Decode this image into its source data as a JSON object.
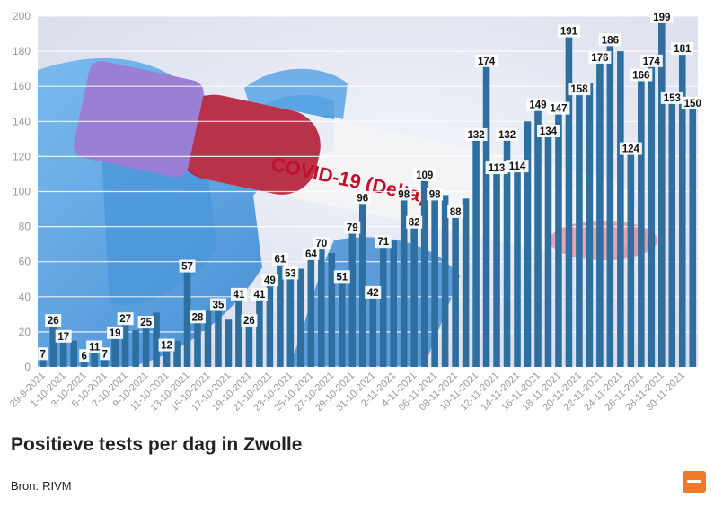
{
  "title": "Positieve tests per dag in Zwolle",
  "source": {
    "label": "Bron:",
    "value": "RIVM"
  },
  "photo": {
    "label": "COVID-19 (Delta)"
  },
  "colors": {
    "bar": "#2e6fa0",
    "label_bg": "#ffffff",
    "label_text": "#111111",
    "grid": "#ffffff",
    "axis_text": "#9a9a9a",
    "logo": "#f07a2a"
  },
  "logo_icon": "publisher-logo",
  "chart_data": {
    "type": "bar",
    "title": "",
    "xlabel": "",
    "ylabel": "",
    "ylim": [
      0,
      200
    ],
    "yticks": [
      0,
      20,
      40,
      60,
      80,
      100,
      120,
      140,
      160,
      180,
      200
    ],
    "grid": true,
    "dates": [
      "29-9-2021",
      "30-9-2021",
      "1-10-2021",
      "2-10-2021",
      "3-10-2021",
      "4-10-2021",
      "5-10-2021",
      "6-10-2021",
      "7-10-2021",
      "8-10-2021",
      "9-10-2021",
      "10-10-2021",
      "11-10-2021",
      "12-10-2021",
      "13-10-2021",
      "14-10-2021",
      "15-10-2021",
      "16-10-2021",
      "17-10-2021",
      "18-10-2021",
      "19-10-2021",
      "20-10-2021",
      "21-10-2021",
      "22-10-2021",
      "23-10-2021",
      "24-10-2021",
      "25-10-2021",
      "26-10-2021",
      "27-10-2021",
      "28-10-2021",
      "29-10-2021",
      "30-10-2021",
      "31-10-2021",
      "1-11-2021",
      "2-11-2021",
      "3-11-2021",
      "4-11-2021",
      "5-11-2021",
      "06-11-2021",
      "07-11-2021",
      "08-11-2021",
      "09-11-2021",
      "10-11-2021",
      "11-11-2021",
      "12-11-2021",
      "13-11-2021",
      "14-11-2021",
      "15-11-2021",
      "16-11-2021",
      "17-11-2021",
      "18-11-2021",
      "19-11-2021",
      "20-11-2021",
      "21-11-2021",
      "22-11-2021",
      "23-11-2021",
      "24-11-2021",
      "25-11-2021",
      "26-11-2021",
      "27-11-2021",
      "28-11-2021",
      "29-11-2021",
      "30-11-2021",
      "1-12-2021"
    ],
    "visible_tick_labels": [
      "29-9-2021",
      "1-10-2021",
      "3-10-2021",
      "5-10-2021",
      "7-10-2021",
      "9-10-2021",
      "11-10-2021",
      "13-10-2021",
      "15-10-2021",
      "17-10-2021",
      "19-10-2021",
      "21-10-2021",
      "23-10-2021",
      "25-10-2021",
      "27-10-2021",
      "29-10-2021",
      "31-10-2021",
      "2-11-2021",
      "4-11-2021",
      "06-11-2021",
      "08-11-2021",
      "10-11-2021",
      "12-11-2021",
      "14-11-2021",
      "16-11-2021",
      "18-11-2021",
      "20-11-2021",
      "22-11-2021",
      "24-11-2021",
      "26-11-2021",
      "28-11-2021",
      "30-11-2021"
    ],
    "values": [
      7,
      26,
      17,
      15,
      6,
      11,
      7,
      19,
      27,
      21,
      25,
      31,
      12,
      15,
      57,
      28,
      32,
      35,
      27,
      41,
      26,
      41,
      49,
      61,
      53,
      56,
      64,
      70,
      65,
      51,
      79,
      96,
      42,
      71,
      72,
      98,
      82,
      109,
      98,
      98,
      88,
      96,
      132,
      174,
      113,
      132,
      114,
      140,
      149,
      134,
      147,
      191,
      158,
      162,
      176,
      186,
      180,
      124,
      166,
      174,
      199,
      153,
      181,
      150
    ],
    "labels": [
      7,
      26,
      17,
      null,
      6,
      11,
      7,
      19,
      27,
      null,
      25,
      null,
      12,
      null,
      57,
      28,
      null,
      35,
      null,
      41,
      26,
      41,
      49,
      61,
      53,
      null,
      64,
      70,
      null,
      51,
      79,
      96,
      42,
      71,
      null,
      98,
      82,
      109,
      98,
      null,
      88,
      null,
      132,
      174,
      113,
      132,
      114,
      null,
      149,
      134,
      147,
      191,
      158,
      null,
      176,
      186,
      null,
      124,
      166,
      174,
      199,
      153,
      181,
      150
    ]
  }
}
